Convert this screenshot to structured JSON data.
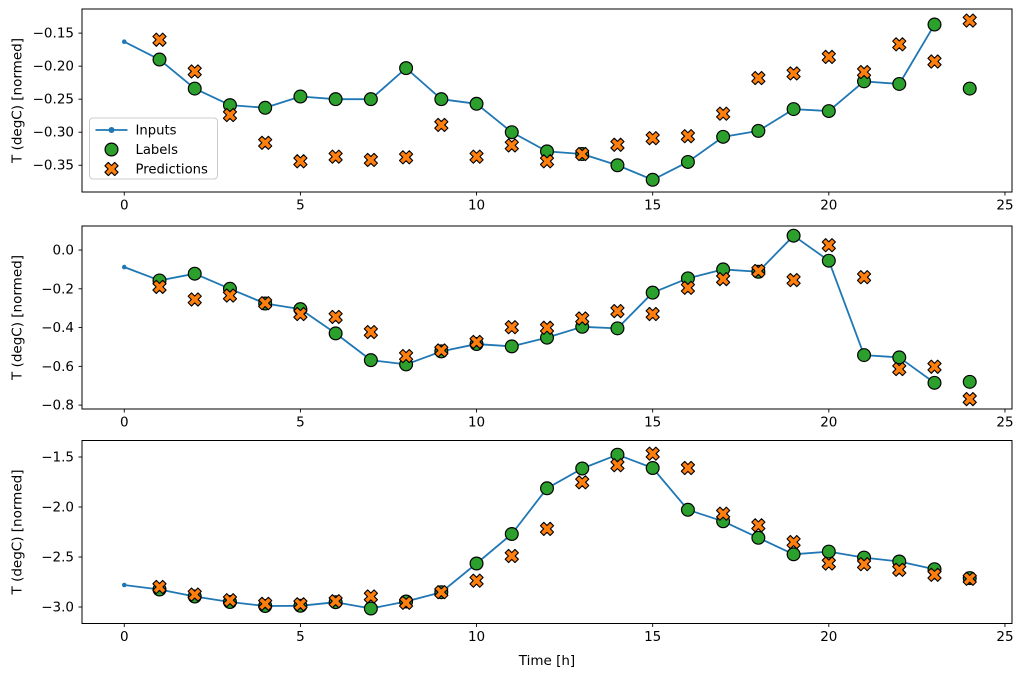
{
  "figure": {
    "kind": "matplotlib-style time series figure, 3 stacked subplots",
    "background": "#ffffff"
  },
  "colors": {
    "inputs_line": "#1f77b4",
    "labels_marker": "#2ca02c",
    "predictions_marker": "#ff7f0e",
    "marker_edge": "#000000",
    "axes_edge": "#000000",
    "tick_text": "#000000",
    "legend_border": "#cccccc",
    "legend_background": "#ffffff"
  },
  "legend": {
    "entries": [
      {
        "label": "Inputs",
        "marker": "line-with-dot",
        "color": "#1f77b4"
      },
      {
        "label": "Labels",
        "marker": "circle",
        "color": "#2ca02c"
      },
      {
        "label": "Predictions",
        "marker": "x-filled",
        "color": "#ff7f0e"
      }
    ]
  },
  "chart_data": [
    {
      "type": "line",
      "title": "",
      "xlabel": "",
      "ylabel": "T (degC) [normed]",
      "xlim": [
        -1.2,
        25.2
      ],
      "ylim": [
        -0.3905,
        -0.1135
      ],
      "grid": false,
      "legend_position": "center-left",
      "xticks": [
        0,
        5,
        10,
        15,
        20,
        25
      ],
      "xtick_labels": [
        "0",
        "5",
        "10",
        "15",
        "20",
        "25"
      ],
      "yticks": [
        -0.15,
        -0.2,
        -0.25,
        -0.3,
        -0.35
      ],
      "ytick_labels": [
        "−0.15",
        "−0.20",
        "−0.25",
        "−0.30",
        "−0.35"
      ],
      "series": [
        {
          "name": "Inputs",
          "kind": "line-dot",
          "x": [
            0,
            1,
            2,
            3,
            4,
            5,
            6,
            7,
            8,
            9,
            10,
            11,
            12,
            13,
            14,
            15,
            16,
            17,
            18,
            19,
            20,
            21,
            22,
            23
          ],
          "y": [
            -0.163,
            -0.19,
            -0.234,
            -0.259,
            -0.263,
            -0.246,
            -0.25,
            -0.25,
            -0.203,
            -0.25,
            -0.257,
            -0.3,
            -0.329,
            -0.333,
            -0.35,
            -0.372,
            -0.345,
            -0.307,
            -0.298,
            -0.265,
            -0.268,
            -0.223,
            -0.227,
            -0.137
          ]
        },
        {
          "name": "Labels",
          "kind": "circle",
          "x": [
            1,
            2,
            3,
            4,
            5,
            6,
            7,
            8,
            9,
            10,
            11,
            12,
            13,
            14,
            15,
            16,
            17,
            18,
            19,
            20,
            21,
            22,
            23,
            24
          ],
          "y": [
            -0.19,
            -0.234,
            -0.259,
            -0.263,
            -0.246,
            -0.25,
            -0.25,
            -0.203,
            -0.25,
            -0.257,
            -0.3,
            -0.329,
            -0.333,
            -0.35,
            -0.372,
            -0.345,
            -0.307,
            -0.298,
            -0.265,
            -0.268,
            -0.223,
            -0.227,
            -0.137,
            -0.234
          ]
        },
        {
          "name": "Predictions",
          "kind": "x",
          "x": [
            1,
            2,
            3,
            4,
            5,
            6,
            7,
            8,
            9,
            10,
            11,
            12,
            13,
            14,
            15,
            16,
            17,
            18,
            19,
            20,
            21,
            22,
            23,
            24
          ],
          "y": [
            -0.16,
            -0.208,
            -0.274,
            -0.316,
            -0.344,
            -0.337,
            -0.342,
            -0.338,
            -0.289,
            -0.337,
            -0.32,
            -0.344,
            -0.333,
            -0.319,
            -0.309,
            -0.306,
            -0.272,
            -0.218,
            -0.211,
            -0.186,
            -0.209,
            -0.167,
            -0.193,
            -0.131
          ]
        }
      ]
    },
    {
      "type": "line",
      "title": "",
      "xlabel": "",
      "ylabel": "T (degC) [normed]",
      "xlim": [
        -1.2,
        25.2
      ],
      "ylim": [
        -0.82,
        0.124
      ],
      "grid": false,
      "legend_position": "none",
      "xticks": [
        0,
        5,
        10,
        15,
        20,
        25
      ],
      "xtick_labels": [
        "0",
        "5",
        "10",
        "15",
        "20",
        "25"
      ],
      "yticks": [
        0.0,
        -0.2,
        -0.4,
        -0.6,
        -0.8
      ],
      "ytick_labels": [
        "0.0",
        "−0.2",
        "−0.4",
        "−0.6",
        "−0.8"
      ],
      "series": [
        {
          "name": "Inputs",
          "kind": "line-dot",
          "x": [
            0,
            1,
            2,
            3,
            4,
            5,
            6,
            7,
            8,
            9,
            10,
            11,
            12,
            13,
            14,
            15,
            16,
            17,
            18,
            19,
            20,
            21,
            22,
            23
          ],
          "y": [
            -0.088,
            -0.157,
            -0.122,
            -0.2,
            -0.276,
            -0.305,
            -0.43,
            -0.568,
            -0.59,
            -0.523,
            -0.485,
            -0.497,
            -0.452,
            -0.396,
            -0.404,
            -0.22,
            -0.146,
            -0.1,
            -0.112,
            0.074,
            -0.055,
            -0.542,
            -0.554,
            -0.685
          ]
        },
        {
          "name": "Labels",
          "kind": "circle",
          "x": [
            1,
            2,
            3,
            4,
            5,
            6,
            7,
            8,
            9,
            10,
            11,
            12,
            13,
            14,
            15,
            16,
            17,
            18,
            19,
            20,
            21,
            22,
            23,
            24
          ],
          "y": [
            -0.157,
            -0.122,
            -0.2,
            -0.276,
            -0.305,
            -0.43,
            -0.568,
            -0.59,
            -0.523,
            -0.485,
            -0.497,
            -0.452,
            -0.396,
            -0.404,
            -0.22,
            -0.146,
            -0.1,
            -0.112,
            0.074,
            -0.055,
            -0.542,
            -0.554,
            -0.685,
            -0.68
          ]
        },
        {
          "name": "Predictions",
          "kind": "x",
          "x": [
            1,
            2,
            3,
            4,
            5,
            6,
            7,
            8,
            9,
            10,
            11,
            12,
            13,
            14,
            15,
            16,
            17,
            18,
            19,
            20,
            21,
            22,
            23,
            24
          ],
          "y": [
            -0.19,
            -0.255,
            -0.235,
            -0.274,
            -0.33,
            -0.345,
            -0.423,
            -0.547,
            -0.518,
            -0.474,
            -0.398,
            -0.401,
            -0.353,
            -0.315,
            -0.33,
            -0.195,
            -0.15,
            -0.108,
            -0.155,
            0.025,
            -0.14,
            -0.614,
            -0.602,
            -0.769
          ]
        }
      ]
    },
    {
      "type": "line",
      "title": "",
      "xlabel": "Time [h]",
      "ylabel": "T (degC) [normed]",
      "xlim": [
        -1.2,
        25.2
      ],
      "ylim": [
        -3.165,
        -1.335
      ],
      "grid": false,
      "legend_position": "none",
      "xticks": [
        0,
        5,
        10,
        15,
        20,
        25
      ],
      "xtick_labels": [
        "0",
        "5",
        "10",
        "15",
        "20",
        "25"
      ],
      "yticks": [
        -1.5,
        -2.0,
        -2.5,
        -3.0
      ],
      "ytick_labels": [
        "−1.5",
        "−2.0",
        "−2.5",
        "−3.0"
      ],
      "series": [
        {
          "name": "Inputs",
          "kind": "line-dot",
          "x": [
            0,
            1,
            2,
            3,
            4,
            5,
            6,
            7,
            8,
            9,
            10,
            11,
            12,
            13,
            14,
            15,
            16,
            17,
            18,
            19,
            20,
            21,
            22,
            23
          ],
          "y": [
            -2.78,
            -2.825,
            -2.895,
            -2.95,
            -2.99,
            -2.988,
            -2.952,
            -3.015,
            -2.945,
            -2.852,
            -2.565,
            -2.27,
            -1.813,
            -1.615,
            -1.477,
            -1.61,
            -2.028,
            -2.143,
            -2.308,
            -2.473,
            -2.446,
            -2.506,
            -2.545,
            -2.622
          ]
        },
        {
          "name": "Labels",
          "kind": "circle",
          "x": [
            1,
            2,
            3,
            4,
            5,
            6,
            7,
            8,
            9,
            10,
            11,
            12,
            13,
            14,
            15,
            16,
            17,
            18,
            19,
            20,
            21,
            22,
            23,
            24
          ],
          "y": [
            -2.825,
            -2.895,
            -2.95,
            -2.99,
            -2.988,
            -2.952,
            -3.015,
            -2.945,
            -2.852,
            -2.565,
            -2.27,
            -1.813,
            -1.615,
            -1.477,
            -1.61,
            -2.028,
            -2.143,
            -2.308,
            -2.473,
            -2.446,
            -2.506,
            -2.545,
            -2.622,
            -2.711
          ]
        },
        {
          "name": "Predictions",
          "kind": "x",
          "x": [
            1,
            2,
            3,
            4,
            5,
            6,
            7,
            8,
            9,
            10,
            11,
            12,
            13,
            14,
            15,
            16,
            17,
            18,
            19,
            20,
            21,
            22,
            23,
            24
          ],
          "y": [
            -2.8,
            -2.876,
            -2.932,
            -2.968,
            -2.973,
            -2.942,
            -2.895,
            -2.958,
            -2.852,
            -2.737,
            -2.49,
            -2.219,
            -1.753,
            -1.582,
            -1.467,
            -1.61,
            -2.067,
            -2.183,
            -2.351,
            -2.565,
            -2.572,
            -2.628,
            -2.678,
            -2.718
          ]
        }
      ]
    }
  ]
}
